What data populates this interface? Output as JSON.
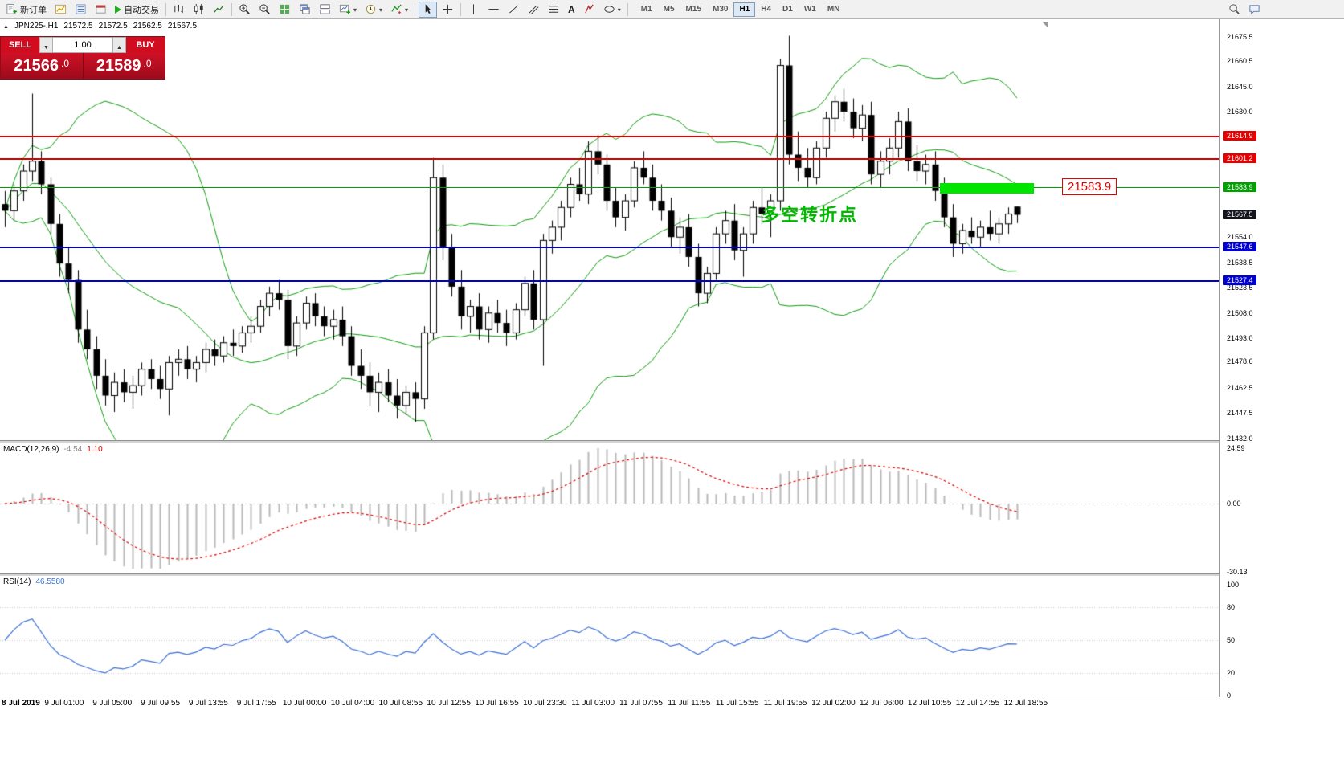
{
  "colors": {
    "level_red": "#e80000",
    "level_green": "#00a000",
    "level_blue": "#0000d0",
    "highlight_green": "#00e400",
    "current_tag_bg": "#15151e",
    "band_green": "#0c9a0c",
    "macd_hist": "#b8b8b8",
    "macd_signal": "#e00000",
    "rsi_line": "#3b6fd4",
    "sell_buy_red": "#d00c1e"
  },
  "toolbar": {
    "new_order": "新订单",
    "auto_trading": "自动交易",
    "timeframes": [
      "M1",
      "M5",
      "M15",
      "M30",
      "H1",
      "H4",
      "D1",
      "W1",
      "MN"
    ],
    "active_timeframe": "H1"
  },
  "chart_header": {
    "symbol_period": "JPN225-,H1",
    "open": "21572.5",
    "high": "21572.5",
    "low": "21562.5",
    "close": "21567.5"
  },
  "trade_panel": {
    "sell_label": "SELL",
    "buy_label": "BUY",
    "volume": "1.00",
    "sell_price": "21566",
    "sell_fraction": ".0",
    "buy_price": "21589",
    "buy_fraction": ".0"
  },
  "annotation_text": "多空转折点",
  "price_callout": "21583.9",
  "levels": [
    {
      "price": 21614.9,
      "label": "21614.9",
      "color": "red"
    },
    {
      "price": 21601.2,
      "label": "21601.2",
      "color": "red"
    },
    {
      "price": 21583.9,
      "label": "21583.9",
      "color": "green"
    },
    {
      "price": 21547.6,
      "label": "21547.6",
      "color": "blue"
    },
    {
      "price": 21527.4,
      "label": "21527.4",
      "color": "blue"
    }
  ],
  "current_price": {
    "price": 21567.5,
    "label": "21567.5"
  },
  "price_scale_ticks": [
    "21675.5",
    "21660.5",
    "21645.0",
    "21630.0",
    "21554.0",
    "21538.5",
    "21523.5",
    "21508.0",
    "21493.0",
    "21478.6",
    "21462.5",
    "21447.5",
    "21432.0"
  ],
  "macd_panel": {
    "name": "MACD(12,26,9)",
    "value_main": "-4.54",
    "value_signal": "1.10",
    "scale": [
      "24.59",
      "0.00",
      "-30.13"
    ]
  },
  "rsi_panel": {
    "name": "RSI(14)",
    "value": "46.5580",
    "scale": [
      "100",
      "80",
      "50",
      "20",
      "0"
    ]
  },
  "time_axis": [
    "8 Jul 2019",
    "9 Jul 01:00",
    "9 Jul 05:00",
    "9 Jul 09:55",
    "9 Jul 13:55",
    "9 Jul 17:55",
    "10 Jul 00:00",
    "10 Jul 04:00",
    "10 Jul 08:55",
    "10 Jul 12:55",
    "10 Jul 16:55",
    "10 Jul 23:30",
    "11 Jul 03:00",
    "11 Jul 07:55",
    "11 Jul 11:55",
    "11 Jul 15:55",
    "11 Jul 19:55",
    "12 Jul 02:00",
    "12 Jul 06:00",
    "12 Jul 10:55",
    "12 Jul 14:55",
    "12 Jul 18:55"
  ],
  "chart_data": {
    "type": "candlestick",
    "symbol": "JPN225-",
    "timeframe": "H1",
    "ylim": [
      21431,
      21686
    ],
    "macd_ylim": [
      -31.0,
      26.65
    ],
    "rsi_ylim": [
      0,
      100
    ],
    "rsi_levels": [
      80,
      50,
      20
    ],
    "indicators": {
      "bollinger_period": 20,
      "bollinger_dev": 2,
      "macd_fast": 12,
      "macd_slow": 26,
      "macd_signal": 9,
      "rsi_period": 14
    },
    "candles": [
      [
        21574,
        21582,
        21560,
        21570
      ],
      [
        21570,
        21586,
        21564,
        21582
      ],
      [
        21582,
        21598,
        21576,
        21594
      ],
      [
        21594,
        21641,
        21588,
        21600
      ],
      [
        21600,
        21606,
        21580,
        21586
      ],
      [
        21586,
        21590,
        21556,
        21562
      ],
      [
        21562,
        21568,
        21530,
        21538
      ],
      [
        21538,
        21548,
        21520,
        21528
      ],
      [
        21528,
        21534,
        21490,
        21498
      ],
      [
        21498,
        21510,
        21480,
        21486
      ],
      [
        21486,
        21494,
        21462,
        21470
      ],
      [
        21470,
        21480,
        21452,
        21458
      ],
      [
        21458,
        21472,
        21448,
        21466
      ],
      [
        21466,
        21474,
        21454,
        21460
      ],
      [
        21460,
        21470,
        21450,
        21464
      ],
      [
        21464,
        21478,
        21458,
        21474
      ],
      [
        21474,
        21480,
        21462,
        21468
      ],
      [
        21468,
        21476,
        21456,
        21462
      ],
      [
        21462,
        21482,
        21446,
        21478
      ],
      [
        21478,
        21486,
        21470,
        21480
      ],
      [
        21480,
        21488,
        21468,
        21474
      ],
      [
        21474,
        21482,
        21466,
        21478
      ],
      [
        21478,
        21490,
        21472,
        21486
      ],
      [
        21486,
        21492,
        21476,
        21482
      ],
      [
        21482,
        21494,
        21478,
        21490
      ],
      [
        21490,
        21498,
        21482,
        21488
      ],
      [
        21488,
        21500,
        21484,
        21496
      ],
      [
        21496,
        21506,
        21490,
        21500
      ],
      [
        21500,
        21516,
        21496,
        21512
      ],
      [
        21512,
        21524,
        21506,
        21520
      ],
      [
        21520,
        21528,
        21510,
        21516
      ],
      [
        21516,
        21522,
        21480,
        21488
      ],
      [
        21488,
        21506,
        21482,
        21502
      ],
      [
        21502,
        21518,
        21498,
        21514
      ],
      [
        21514,
        21520,
        21500,
        21506
      ],
      [
        21506,
        21512,
        21494,
        21500
      ],
      [
        21500,
        21510,
        21492,
        21504
      ],
      [
        21504,
        21512,
        21488,
        21494
      ],
      [
        21494,
        21500,
        21470,
        21476
      ],
      [
        21476,
        21486,
        21462,
        21470
      ],
      [
        21470,
        21478,
        21452,
        21460
      ],
      [
        21460,
        21472,
        21448,
        21466
      ],
      [
        21466,
        21474,
        21454,
        21458
      ],
      [
        21458,
        21468,
        21444,
        21452
      ],
      [
        21452,
        21464,
        21446,
        21460
      ],
      [
        21460,
        21466,
        21442,
        21456
      ],
      [
        21456,
        21500,
        21450,
        21496
      ],
      [
        21496,
        21602,
        21492,
        21590
      ],
      [
        21590,
        21598,
        21540,
        21548
      ],
      [
        21548,
        21556,
        21518,
        21524
      ],
      [
        21524,
        21534,
        21498,
        21506
      ],
      [
        21506,
        21516,
        21496,
        21512
      ],
      [
        21512,
        21520,
        21492,
        21498
      ],
      [
        21498,
        21512,
        21490,
        21508
      ],
      [
        21508,
        21516,
        21496,
        21502
      ],
      [
        21502,
        21510,
        21488,
        21496
      ],
      [
        21496,
        21514,
        21492,
        21510
      ],
      [
        21510,
        21530,
        21506,
        21526
      ],
      [
        21526,
        21534,
        21498,
        21504
      ],
      [
        21504,
        21556,
        21476,
        21552
      ],
      [
        21552,
        21564,
        21544,
        21560
      ],
      [
        21560,
        21576,
        21552,
        21572
      ],
      [
        21572,
        21590,
        21566,
        21586
      ],
      [
        21586,
        21596,
        21576,
        21580
      ],
      [
        21580,
        21612,
        21574,
        21606
      ],
      [
        21606,
        21616,
        21592,
        21598
      ],
      [
        21598,
        21604,
        21570,
        21576
      ],
      [
        21576,
        21584,
        21560,
        21566
      ],
      [
        21566,
        21580,
        21558,
        21576
      ],
      [
        21576,
        21600,
        21572,
        21596
      ],
      [
        21596,
        21606,
        21586,
        21590
      ],
      [
        21590,
        21598,
        21570,
        21576
      ],
      [
        21576,
        21586,
        21564,
        21570
      ],
      [
        21570,
        21578,
        21548,
        21554
      ],
      [
        21554,
        21566,
        21544,
        21560
      ],
      [
        21560,
        21568,
        21536,
        21542
      ],
      [
        21542,
        21550,
        21512,
        21520
      ],
      [
        21520,
        21536,
        21514,
        21532
      ],
      [
        21532,
        21560,
        21528,
        21556
      ],
      [
        21556,
        21570,
        21550,
        21564
      ],
      [
        21564,
        21574,
        21540,
        21546
      ],
      [
        21546,
        21560,
        21530,
        21556
      ],
      [
        21556,
        21576,
        21550,
        21572
      ],
      [
        21572,
        21584,
        21562,
        21568
      ],
      [
        21568,
        21580,
        21554,
        21576
      ],
      [
        21576,
        21662,
        21570,
        21658
      ],
      [
        21658,
        21676,
        21598,
        21604
      ],
      [
        21604,
        21618,
        21588,
        21596
      ],
      [
        21596,
        21608,
        21584,
        21590
      ],
      [
        21590,
        21612,
        21586,
        21608
      ],
      [
        21608,
        21630,
        21602,
        21626
      ],
      [
        21626,
        21640,
        21618,
        21636
      ],
      [
        21636,
        21644,
        21624,
        21630
      ],
      [
        21630,
        21638,
        21614,
        21620
      ],
      [
        21620,
        21634,
        21612,
        21628
      ],
      [
        21628,
        21636,
        21586,
        21592
      ],
      [
        21592,
        21606,
        21584,
        21600
      ],
      [
        21600,
        21614,
        21592,
        21608
      ],
      [
        21608,
        21630,
        21602,
        21624
      ],
      [
        21624,
        21632,
        21594,
        21600
      ],
      [
        21600,
        21610,
        21588,
        21594
      ],
      [
        21594,
        21604,
        21586,
        21598
      ],
      [
        21598,
        21606,
        21576,
        21582
      ],
      [
        21582,
        21590,
        21560,
        21566
      ],
      [
        21566,
        21574,
        21542,
        21550
      ],
      [
        21550,
        21562,
        21544,
        21558
      ],
      [
        21558,
        21566,
        21550,
        21554
      ],
      [
        21554,
        21564,
        21548,
        21560
      ],
      [
        21560,
        21570,
        21552,
        21556
      ],
      [
        21556,
        21566,
        21550,
        21562
      ],
      [
        21562,
        21572,
        21556,
        21568
      ],
      [
        21572.5,
        21572.5,
        21562.5,
        21567.5
      ]
    ]
  }
}
